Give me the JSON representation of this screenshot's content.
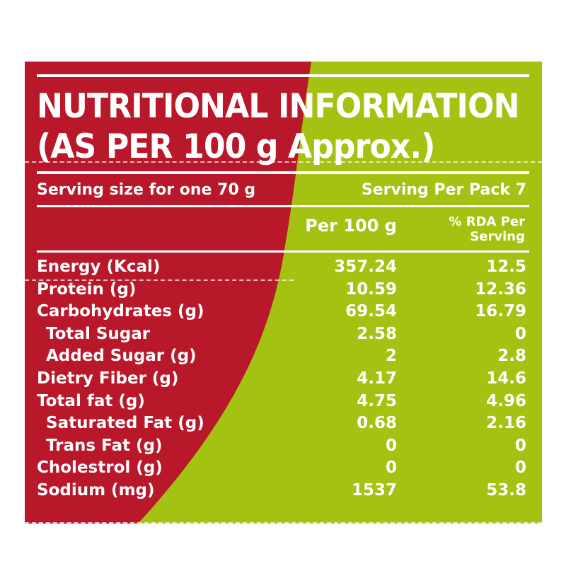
{
  "colors": {
    "red": "#b8182a",
    "green": "#a4c212",
    "text": "#ffffff"
  },
  "label": {
    "title_line1": "NUTRITIONAL INFORMATION",
    "title_line2": "(AS PER 100 g Approx.)",
    "serving_size": "Serving size for one 70 g",
    "serving_per_pack": "Serving Per Pack 7",
    "col_per100": "Per 100 g",
    "col_rda_line1": "% RDA Per",
    "col_rda_line2": "Serving",
    "rows": [
      {
        "name": "Energy (Kcal)",
        "per100": "357.24",
        "rda": "12.5",
        "indent": false
      },
      {
        "name": "Protein (g)",
        "per100": "10.59",
        "rda": "12.36",
        "indent": false
      },
      {
        "name": "Carbohydrates (g)",
        "per100": "69.54",
        "rda": "16.79",
        "indent": false
      },
      {
        "name": "Total Sugar",
        "per100": "2.58",
        "rda": "0",
        "indent": true
      },
      {
        "name": "Added Sugar (g)",
        "per100": "2",
        "rda": "2.8",
        "indent": true
      },
      {
        "name": "Dietry Fiber (g)",
        "per100": "4.17",
        "rda": "14.6",
        "indent": false
      },
      {
        "name": "Total fat (g)",
        "per100": "4.75",
        "rda": "4.96",
        "indent": false
      },
      {
        "name": "Saturated Fat (g)",
        "per100": "0.68",
        "rda": "2.16",
        "indent": true
      },
      {
        "name": "Trans Fat (g)",
        "per100": "0",
        "rda": "0",
        "indent": true
      },
      {
        "name": "Cholestrol (g)",
        "per100": "0",
        "rda": "0",
        "indent": false
      },
      {
        "name": "Sodium (mg)",
        "per100": "1537",
        "rda": "53.8",
        "indent": false
      }
    ]
  }
}
